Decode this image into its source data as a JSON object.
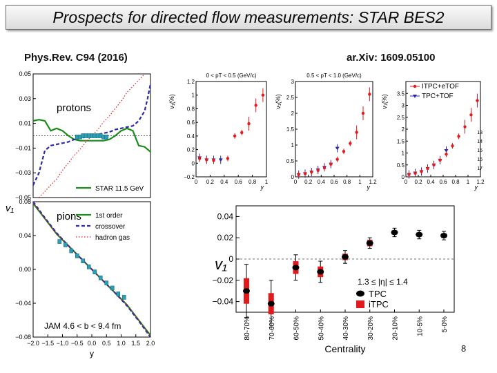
{
  "slide": {
    "title": "Prospects for  directed flow measurements:  STAR BES2",
    "ref_left": "Phys.Rev. C94 (2016)",
    "ref_right": "ar.Xiv: 1609.05100",
    "page_number": "8"
  },
  "colors": {
    "red": "#e31a1c",
    "blue": "#2a2aa8",
    "green": "#1a8a1a",
    "teal": "#2aa0b4",
    "black": "#000000"
  },
  "chart_data": [
    {
      "id": "jam-protons",
      "type": "line",
      "panel_label": "protons",
      "ylim": [
        -0.05,
        0.05
      ],
      "yticks": [
        0.05,
        0.03,
        0.01,
        -0.01,
        -0.03,
        -0.05
      ],
      "ytick_labels": [
        "0.05",
        "0.03",
        "0.01",
        "−0.01",
        "−0.03",
        "−0.05"
      ],
      "xlim": [
        -2.0,
        2.0
      ],
      "legend": [
        "STAR 11.5 GeV"
      ],
      "series": [
        {
          "style": "solid-green",
          "x": [
            -2.0,
            -1.8,
            -1.6,
            -1.4,
            -1.2,
            -1.0,
            -0.8,
            -0.6,
            -0.4,
            -0.2,
            0.0,
            0.2,
            0.4,
            0.6,
            0.8,
            1.0,
            1.2,
            1.4,
            1.6,
            1.8,
            2.0
          ],
          "y": [
            0.012,
            0.013,
            0.012,
            0.004,
            0.006,
            0.004,
            0.0,
            -0.003,
            -0.004,
            -0.004,
            -0.004,
            -0.004,
            -0.004,
            -0.003,
            0.0,
            0.004,
            0.006,
            0.004,
            -0.008,
            -0.009,
            -0.013
          ]
        },
        {
          "style": "dashed-blue",
          "x": [
            -2.0,
            -1.8,
            -1.6,
            -1.4,
            -1.2,
            -1.0,
            -0.8,
            -0.6,
            -0.4,
            -0.2,
            0.0,
            0.2,
            0.4,
            0.6,
            0.8,
            1.0,
            1.2,
            1.4,
            1.6,
            1.8,
            1.9,
            2.0
          ],
          "y": [
            -0.04,
            -0.03,
            -0.012,
            -0.008,
            -0.007,
            -0.006,
            -0.005,
            -0.003,
            -0.002,
            -0.001,
            0.0,
            0.001,
            0.002,
            0.003,
            0.005,
            0.006,
            0.007,
            0.008,
            0.012,
            0.02,
            0.03,
            0.042
          ]
        },
        {
          "style": "dotted-red",
          "x": [
            -1.8,
            -1.6,
            -1.4,
            -1.2,
            -1.0,
            -0.8,
            -0.6,
            -0.4,
            -0.2,
            0.0,
            0.2,
            0.4,
            0.6,
            0.8,
            1.0,
            1.2,
            1.4,
            1.6,
            1.8
          ],
          "y": [
            -0.05,
            -0.045,
            -0.04,
            -0.035,
            -0.028,
            -0.022,
            -0.016,
            -0.011,
            -0.005,
            0.0,
            0.005,
            0.011,
            0.016,
            0.022,
            0.028,
            0.035,
            0.04,
            0.045,
            0.05
          ]
        },
        {
          "style": "markers-teal",
          "x": [
            -0.5,
            -0.4,
            -0.3,
            -0.2,
            -0.1,
            0.0,
            0.1,
            0.2,
            0.3,
            0.4,
            0.5
          ],
          "y": [
            -0.001,
            -0.001,
            0.0,
            0.0,
            0.0,
            0.0,
            0.0,
            0.0,
            0.0,
            -0.001,
            -0.001
          ]
        }
      ]
    },
    {
      "id": "jam-pions",
      "type": "line",
      "panel_label": "pions",
      "annotation": "JAM 4.6 < b < 9.4 fm",
      "ylim": [
        -0.08,
        0.08
      ],
      "yticks": [
        0.08,
        0.04,
        0.0,
        -0.04,
        -0.08
      ],
      "ytick_labels": [
        "0.08",
        "0.04",
        "0.00",
        "−0.04",
        "−0.08"
      ],
      "xlim": [
        -2.0,
        2.0
      ],
      "xticks": [
        -2.0,
        -1.5,
        -1.0,
        -0.5,
        0.0,
        0.5,
        1.0,
        1.5,
        2.0
      ],
      "xtick_labels": [
        "−2.0",
        "−1.5",
        "−1.0",
        "−0.5",
        "0.0",
        "0.5",
        "1.0",
        "1.5",
        "2.0"
      ],
      "xlabel": "y",
      "ylabel": "v₁",
      "legend": [
        "1st order",
        "crossover",
        "hadron gas"
      ],
      "series": [
        {
          "style": "solid-green",
          "x": [
            -2.0,
            -1.6,
            -1.2,
            -0.8,
            -0.4,
            0.0,
            0.4,
            0.8,
            1.2,
            1.6,
            2.0
          ],
          "y": [
            0.078,
            0.06,
            0.042,
            0.028,
            0.014,
            0.0,
            -0.014,
            -0.028,
            -0.042,
            -0.06,
            -0.078
          ]
        },
        {
          "style": "dashed-blue",
          "x": [
            -2.0,
            -1.6,
            -1.2,
            -0.8,
            -0.4,
            0.0,
            0.4,
            0.8,
            1.2,
            1.6,
            2.0
          ],
          "y": [
            0.08,
            0.061,
            0.043,
            0.028,
            0.014,
            0.0,
            -0.014,
            -0.028,
            -0.043,
            -0.061,
            -0.08
          ]
        },
        {
          "style": "dotted-red",
          "x": [
            -2.0,
            -1.6,
            -1.2,
            -0.8,
            -0.4,
            0.0,
            0.4,
            0.8,
            1.2,
            1.6,
            2.0
          ],
          "y": [
            0.079,
            0.06,
            0.042,
            0.028,
            0.014,
            0.0,
            -0.014,
            -0.028,
            -0.042,
            -0.06,
            -0.079
          ]
        },
        {
          "style": "markers-teal",
          "x": [
            -1.1,
            -0.9,
            -0.7,
            -0.5,
            -0.3,
            -0.1,
            0.1,
            0.3,
            0.5,
            0.7,
            0.9,
            1.1
          ],
          "y": [
            0.033,
            0.029,
            0.022,
            0.016,
            0.01,
            0.003,
            -0.003,
            -0.01,
            -0.016,
            -0.022,
            -0.029,
            -0.033
          ]
        }
      ]
    },
    {
      "id": "pt-low",
      "type": "scatter",
      "title": "0 < pT < 0.5 (GeV/c)",
      "ylabel": "v₁(%)",
      "xlabel": "y",
      "xlim": [
        0,
        1.0
      ],
      "ylim": [
        -0.2,
        1.2
      ],
      "xticks": [
        0,
        0.2,
        0.4,
        0.6,
        0.8,
        1.0
      ],
      "xtick_labels": [
        "0",
        "0.2",
        "0.4",
        "0.6",
        "0.8",
        "1"
      ],
      "yticks": [
        1.2,
        1.0,
        0.8,
        0.6,
        0.4,
        0.2,
        0.0,
        -0.2
      ],
      "ytick_labels": [
        "1.2",
        "1",
        "0.8",
        "0.6",
        "0.4",
        "0.2",
        "0",
        "−0.2"
      ],
      "series": [
        {
          "name": "iTPC+eTOF",
          "x": [
            0.05,
            0.15,
            0.25,
            0.45,
            0.55,
            0.65,
            0.75,
            0.85,
            0.95
          ],
          "y": [
            0.07,
            0.05,
            0.04,
            0.07,
            0.4,
            0.45,
            0.58,
            0.85,
            1.0
          ]
        },
        {
          "name": "TPC+TOF",
          "x": [
            0.05,
            0.15,
            0.25,
            0.35
          ],
          "y": [
            0.08,
            0.05,
            0.05,
            0.05
          ]
        }
      ]
    },
    {
      "id": "pt-mid",
      "type": "scatter",
      "title": "0.5 < pT < 1.0 (GeV/c)",
      "ylabel": "v₁(%)",
      "xlabel": "y",
      "xlim": [
        0,
        1.2
      ],
      "ylim": [
        0,
        3
      ],
      "xticks": [
        0,
        0.2,
        0.4,
        0.6,
        0.8,
        1.0,
        1.2
      ],
      "xtick_labels": [
        "0",
        "0.2",
        "0.4",
        "0.6",
        "0.8",
        "1",
        "1.2"
      ],
      "yticks": [
        3,
        2.5,
        2,
        1.5,
        1,
        0.5,
        0
      ],
      "ytick_labels": [
        "3",
        "2.5",
        "2",
        "1.5",
        "1",
        "0.5",
        "0"
      ],
      "series": [
        {
          "name": "iTPC+eTOF",
          "x": [
            0.05,
            0.15,
            0.25,
            0.35,
            0.45,
            0.55,
            0.65,
            0.75,
            0.85,
            0.95,
            1.05,
            1.15
          ],
          "y": [
            0.07,
            0.1,
            0.15,
            0.2,
            0.28,
            0.4,
            0.55,
            0.8,
            1.05,
            1.4,
            2.0,
            2.6
          ]
        },
        {
          "name": "TPC+TOF",
          "x": [
            0.05,
            0.15,
            0.25,
            0.35,
            0.45,
            0.55,
            0.65
          ],
          "y": [
            0.07,
            0.1,
            0.15,
            0.22,
            0.3,
            0.4,
            0.9
          ]
        }
      ]
    },
    {
      "id": "pt-high",
      "type": "scatter",
      "ylabel": "v₁(%)",
      "xlabel": "y",
      "xlim": [
        0,
        1.2
      ],
      "ylim": [
        0,
        4
      ],
      "xticks": [
        0,
        0.2,
        0.4,
        0.6,
        0.8,
        1.0,
        1.2
      ],
      "xtick_labels": [
        "0",
        "0.2",
        "0.4",
        "0.6",
        "0.8",
        "1",
        "1.2"
      ],
      "yticks": [
        3.5,
        3,
        2.5,
        2,
        1.5,
        1,
        0.5,
        0
      ],
      "ytick_labels": [
        "3.5",
        "3",
        "2.5",
        "2",
        "1.5",
        "1",
        "0.5",
        "0"
      ],
      "right_labels": [
        "13",
        "14",
        "15",
        "16",
        "17"
      ],
      "legend": [
        "ITPC+eTOF",
        "TPC+TOF"
      ],
      "series": [
        {
          "name": "ITPC+eTOF",
          "x": [
            0.05,
            0.15,
            0.25,
            0.35,
            0.45,
            0.55,
            0.65,
            0.75,
            0.85,
            0.95,
            1.05,
            1.15
          ],
          "y": [
            0.1,
            0.15,
            0.22,
            0.35,
            0.5,
            0.7,
            0.95,
            1.3,
            1.7,
            2.1,
            2.6,
            3.2
          ]
        },
        {
          "name": "TPC+TOF",
          "x": [
            0.05,
            0.15,
            0.25,
            0.35,
            0.45,
            0.55,
            0.65
          ],
          "y": [
            0.1,
            0.16,
            0.22,
            0.35,
            0.5,
            0.7,
            1.1
          ]
        }
      ]
    },
    {
      "id": "centrality",
      "type": "scatter",
      "xlabel": "Centrality",
      "ylabel": "v₁",
      "ylim": [
        -0.05,
        0.05
      ],
      "yticks": [
        0.04,
        0.02,
        0.0,
        -0.02,
        -0.04
      ],
      "ytick_labels": [
        "0.04",
        "0.02",
        "0",
        "−0.02",
        "−0.04"
      ],
      "categories": [
        "80-70%",
        "70-60%",
        "60-50%",
        "50-40%",
        "40-30%",
        "30-20%",
        "20-10%",
        "10-5%",
        "5-0%"
      ],
      "annotation": "1.3 ≤ |η| ≤ 1.4",
      "legend": [
        "TPC",
        "iTPC"
      ],
      "series": [
        {
          "name": "TPC",
          "values": [
            -0.03,
            -0.042,
            -0.008,
            -0.012,
            0.002,
            0.015,
            0.025,
            0.023,
            0.022
          ],
          "errors": [
            0.025,
            0.022,
            0.012,
            0.01,
            0.006,
            0.005,
            0.004,
            0.004,
            0.004
          ]
        },
        {
          "name": "iTPC",
          "values": [
            -0.03,
            -0.042,
            -0.008,
            -0.012,
            0.002,
            0.015,
            0.025,
            0.023,
            0.022
          ],
          "errors": [
            0.012,
            0.01,
            0.006,
            0.005,
            0.003,
            0.003,
            0.002,
            0.002,
            0.002
          ]
        }
      ]
    }
  ]
}
